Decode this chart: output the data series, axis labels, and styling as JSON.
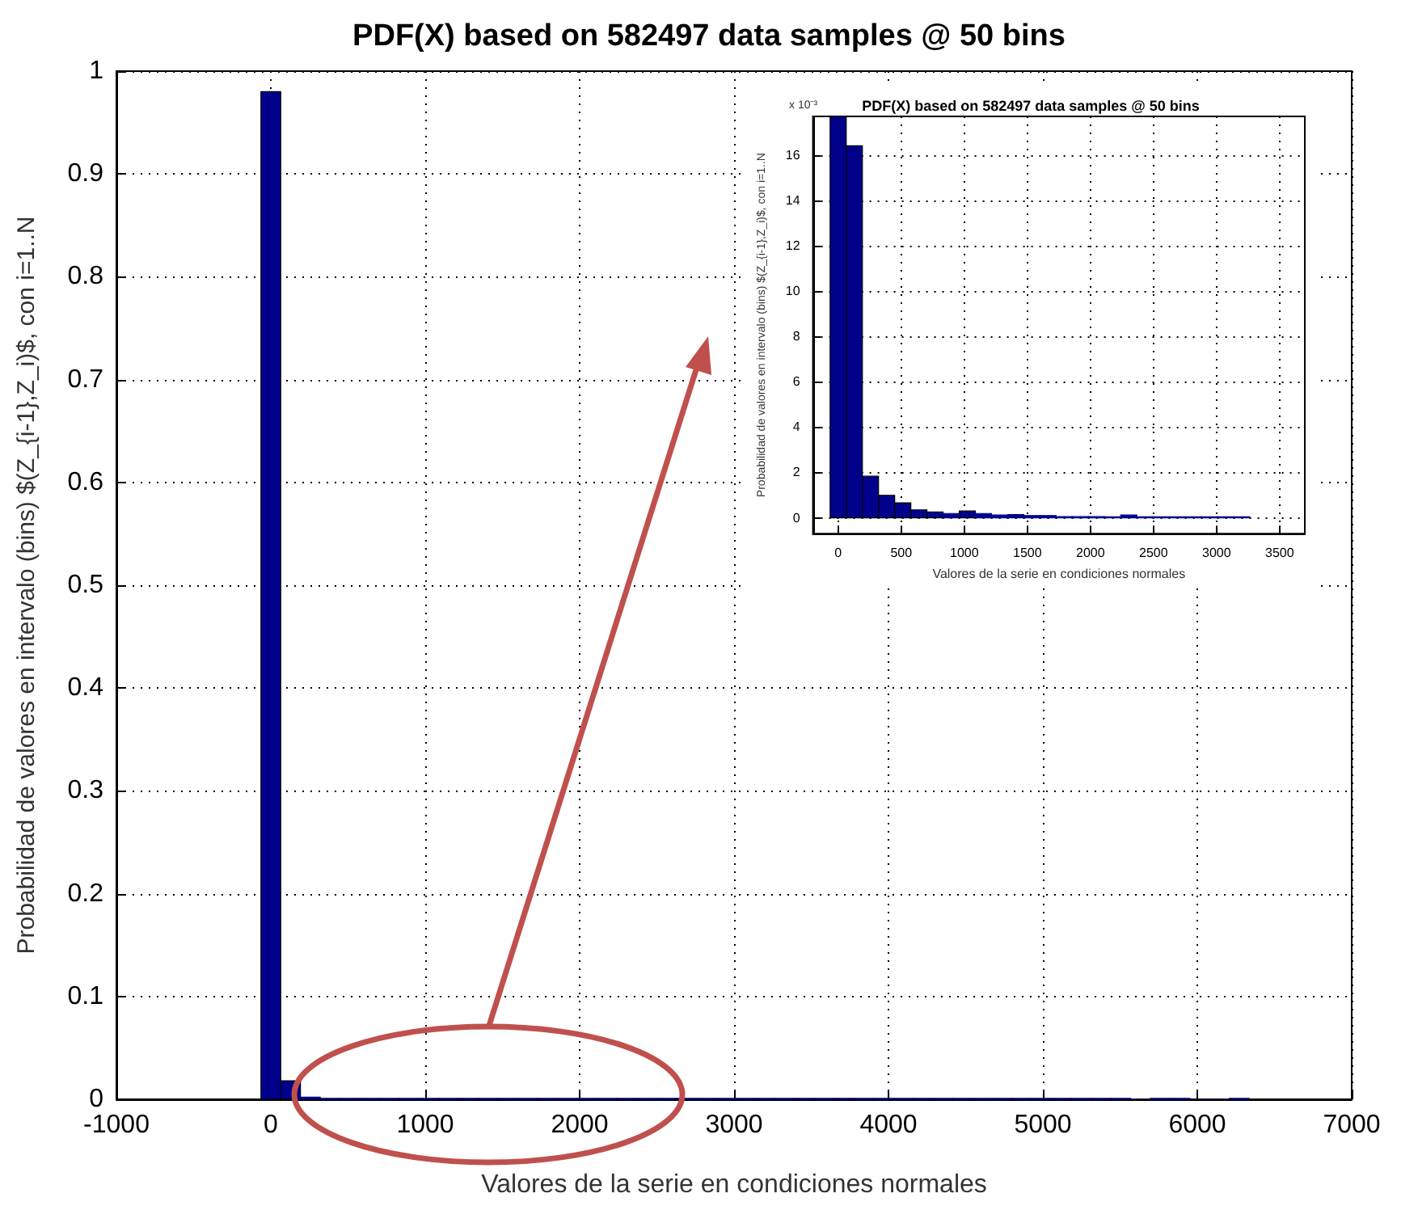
{
  "chart_data": [
    {
      "type": "histogram",
      "title": "PDF(X) based on 582497 data samples @ 50 bins",
      "xlabel": "Valores de la serie en condiciones normales",
      "ylabel": "Probabilidad de valores en intervalo (bins) $(Z_{i-1},Z_i)$, con i=1..N",
      "bins": [
        -64,
        64,
        192,
        320,
        448,
        576,
        704,
        832,
        960,
        1088,
        1216,
        1344,
        1472,
        1600,
        1728,
        1856,
        1984,
        2112,
        2240,
        2368,
        2496,
        2624,
        2752,
        2880,
        3008,
        3136,
        3264,
        3392,
        3520,
        3648,
        3776,
        3904,
        4032,
        4160,
        4288,
        4416,
        4544,
        4672,
        4800,
        4928,
        5056,
        5184,
        5312,
        5440,
        5568,
        5696,
        5824,
        5952,
        6080,
        6208,
        6336
      ],
      "values": [
        0.98,
        0.018,
        0.002,
        0.001,
        0.001,
        0.001,
        0.001,
        0.001,
        0.001,
        0.001,
        0.001,
        0.001,
        0.001,
        0.001,
        0.001,
        0.001,
        0.001,
        0.001,
        0.001,
        0.001,
        0.001,
        0.001,
        0.001,
        0.001,
        0.001,
        0.001,
        0.001,
        0.001,
        0.001,
        0.001,
        0.001,
        0.001,
        0.001,
        0.001,
        0.001,
        0.001,
        0.001,
        0.001,
        0.001,
        0.001,
        0.001,
        0.001,
        0.001,
        0.001,
        0,
        0.001,
        0.001,
        0,
        0,
        0.001
      ],
      "color": "#00008b",
      "xlim": [
        -1000,
        7000
      ],
      "xticks": [
        -1000,
        0,
        1000,
        2000,
        3000,
        4000,
        5000,
        6000,
        7000
      ],
      "ylim": [
        0,
        1
      ],
      "yticks": [
        0,
        0.1,
        0.2,
        0.3,
        0.4,
        0.5,
        0.6,
        0.7,
        0.8,
        0.9,
        1
      ],
      "grid": true
    },
    {
      "type": "histogram",
      "title": "PDF(X) based on 582497 data samples @ 50 bins",
      "xlabel": "Valores de la serie en condiciones normales",
      "ylabel": "Probabilidad de valores en intervalo (bins) $(Z_{i-1},Z_i)$, con i=1..N",
      "annotations": [
        "x 10⁻³"
      ],
      "bins": [
        -64,
        64,
        192,
        320,
        448,
        576,
        704,
        832,
        960,
        1088,
        1216,
        1344,
        1472,
        1600,
        1728,
        1856,
        1984,
        2112,
        2240,
        2368,
        2496,
        2624,
        2752,
        2880,
        3008,
        3136,
        3264
      ],
      "values": [
        17.7,
        16.4,
        1.83,
        0.99,
        0.66,
        0.35,
        0.26,
        0.19,
        0.3,
        0.19,
        0.12,
        0.14,
        0.1,
        0.1,
        0.05,
        0.05,
        0.05,
        0.04,
        0.12,
        0.04,
        0.04,
        0.04,
        0.04,
        0.04,
        0.04,
        0.04
      ],
      "color": "#00008b",
      "xlim": [
        -200,
        3700
      ],
      "xticks": [
        0,
        500,
        1000,
        1500,
        2000,
        2500,
        3000,
        3500
      ],
      "ylim": [
        -0.7,
        17.7
      ],
      "yticks": [
        0,
        2,
        4,
        6,
        8,
        10,
        12,
        14,
        16
      ],
      "grid": true
    }
  ]
}
